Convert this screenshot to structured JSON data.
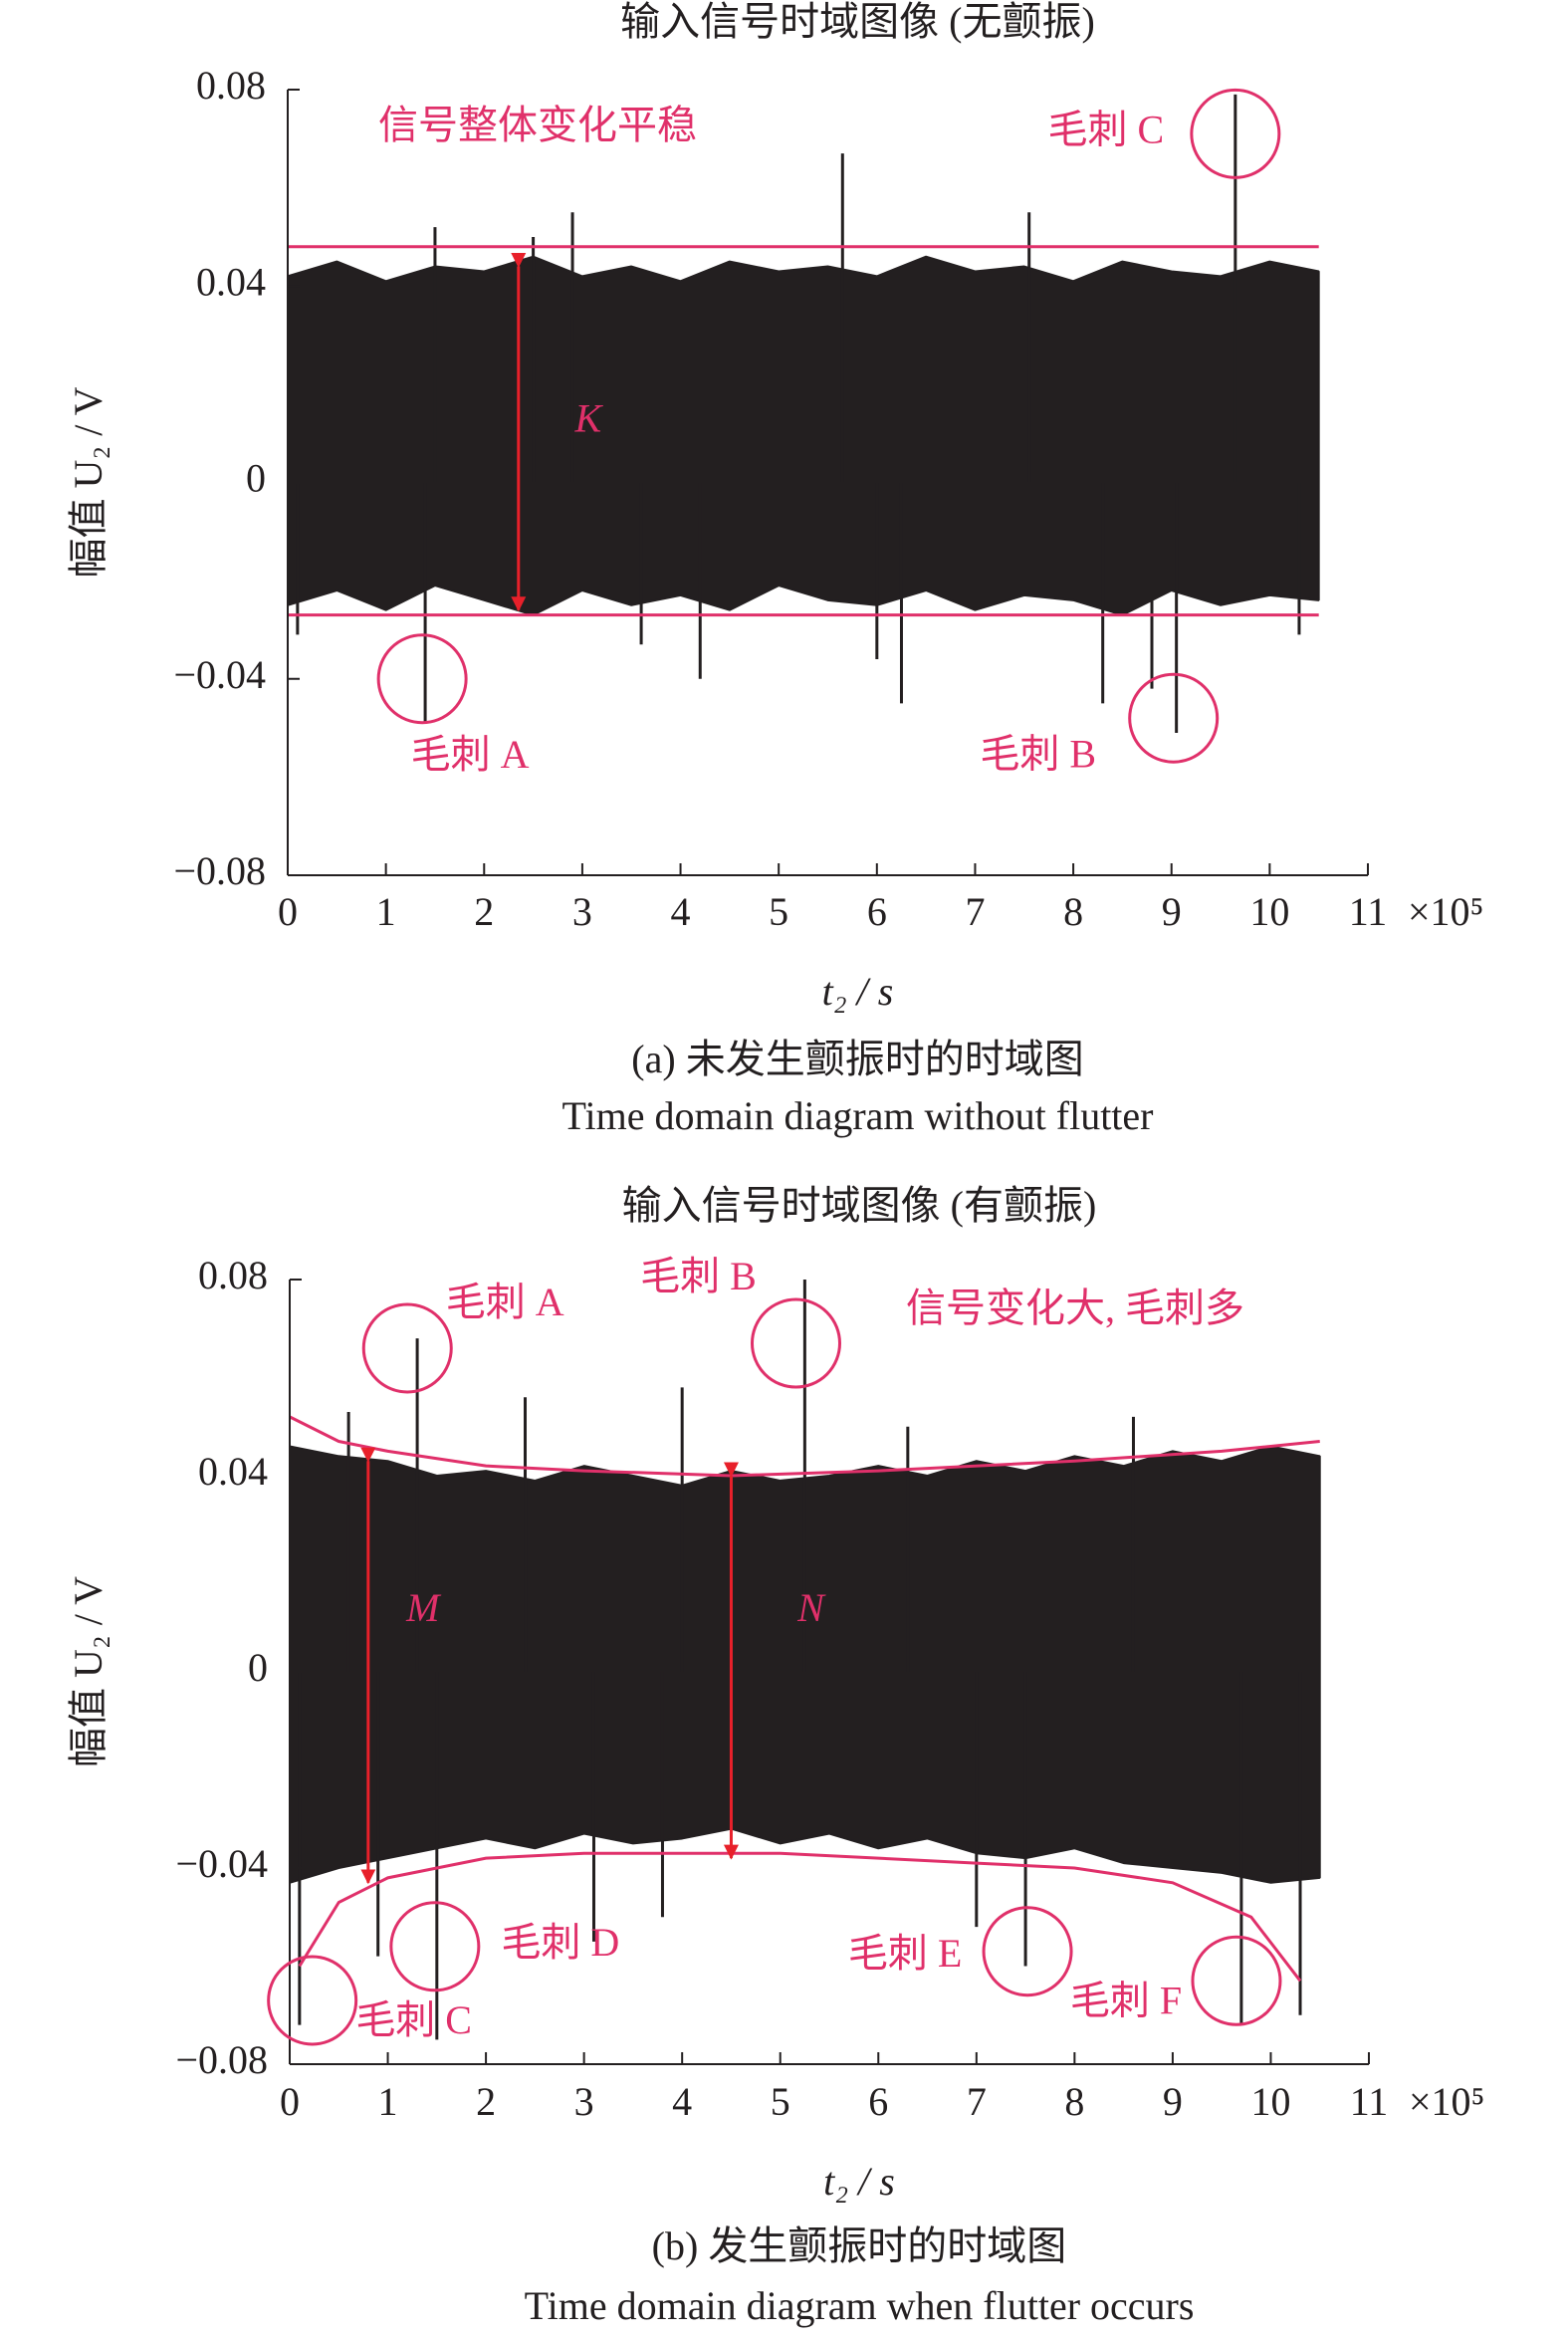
{
  "chart_data": [
    {
      "type": "band",
      "title": "输入信号时域图像 (无颤振)",
      "xlabel": "t₂ / s",
      "ylabel": "幅值 U₂ / V",
      "x_scale_label": "×10⁵",
      "caption": "(a) 未发生颤振时的时域图",
      "caption_en": "Time domain diagram without flutter",
      "xlim": [
        0,
        11
      ],
      "xticks": [
        0,
        1,
        2,
        3,
        4,
        5,
        6,
        7,
        8,
        9,
        10,
        11
      ],
      "ylim": [
        -0.08,
        0.08
      ],
      "yticks": [
        {
          "value": -0.08,
          "label": "−0.08"
        },
        {
          "value": -0.04,
          "label": "−0.04"
        },
        0,
        0.04,
        0.08
      ],
      "signal": {
        "color": "#231f20",
        "x": [
          0,
          0.5,
          1,
          1.5,
          2,
          2.5,
          3,
          3.5,
          4,
          4.5,
          5,
          5.5,
          6,
          6.5,
          7,
          7.5,
          8,
          8.5,
          9,
          9.5,
          10,
          10.5
        ],
        "upper": [
          0.042,
          0.045,
          0.041,
          0.044,
          0.043,
          0.046,
          0.042,
          0.044,
          0.041,
          0.045,
          0.043,
          0.044,
          0.042,
          0.046,
          0.043,
          0.044,
          0.041,
          0.045,
          0.043,
          0.042,
          0.045,
          0.043
        ],
        "lower": [
          -0.025,
          -0.022,
          -0.026,
          -0.021,
          -0.024,
          -0.027,
          -0.022,
          -0.025,
          -0.023,
          -0.026,
          -0.021,
          -0.024,
          -0.025,
          -0.022,
          -0.026,
          -0.023,
          -0.024,
          -0.027,
          -0.022,
          -0.025,
          -0.023,
          -0.024
        ]
      },
      "spikes": {
        "x": [
          0.1,
          1.4,
          1.5,
          2.5,
          2.9,
          4.2,
          5.65,
          6.25,
          7.55,
          8.3,
          8.8,
          9.05,
          9.65,
          10.3,
          3.6,
          6.0
        ],
        "values": [
          -0.031,
          -0.049,
          0.052,
          0.05,
          0.055,
          -0.04,
          0.067,
          -0.045,
          0.055,
          -0.045,
          -0.042,
          -0.051,
          0.079,
          -0.031,
          -0.033,
          -0.036
        ]
      },
      "envelope": {
        "color": "#e0306a",
        "upper": {
          "x": [
            0,
            10.5
          ],
          "values": [
            0.048,
            0.048
          ]
        },
        "lower": {
          "x": [
            0,
            10.5
          ],
          "values": [
            -0.027,
            -0.027
          ]
        }
      },
      "arrows": [
        {
          "label": "K",
          "x": 2.35,
          "from": 0.044,
          "to": -0.026
        }
      ],
      "note": "信号整体变化平稳",
      "annotations": [
        {
          "text": "毛刺 A",
          "x": 1.37,
          "y": -0.04
        },
        {
          "text": "毛刺 B",
          "x": 9.02,
          "y": -0.048
        },
        {
          "text": "毛刺 C",
          "x": 9.65,
          "y": 0.071
        }
      ]
    },
    {
      "type": "band",
      "title": "输入信号时域图像 (有颤振)",
      "xlabel": "t₂ / s",
      "ylabel": "幅值 U₂ / V",
      "x_scale_label": "×10⁵",
      "caption": "(b) 发生颤振时的时域图",
      "caption_en": "Time domain diagram when flutter occurs",
      "xlim": [
        0,
        11
      ],
      "xticks": [
        0,
        1,
        2,
        3,
        4,
        5,
        6,
        7,
        8,
        9,
        10,
        11
      ],
      "ylim": [
        -0.08,
        0.08
      ],
      "yticks": [
        {
          "value": -0.08,
          "label": "−0.08"
        },
        {
          "value": -0.04,
          "label": "−0.04"
        },
        0,
        0.04,
        0.08
      ],
      "signal": {
        "color": "#231f20",
        "x": [
          0,
          0.5,
          1,
          1.5,
          2,
          2.5,
          3,
          3.5,
          4,
          4.5,
          5,
          5.5,
          6,
          6.5,
          7,
          7.5,
          8,
          8.5,
          9,
          9.5,
          10,
          10.5
        ],
        "upper": [
          0.046,
          0.044,
          0.043,
          0.04,
          0.041,
          0.039,
          0.042,
          0.04,
          0.038,
          0.041,
          0.039,
          0.04,
          0.042,
          0.04,
          0.043,
          0.041,
          0.044,
          0.042,
          0.045,
          0.043,
          0.046,
          0.044
        ],
        "lower": [
          -0.043,
          -0.04,
          -0.038,
          -0.036,
          -0.034,
          -0.036,
          -0.033,
          -0.035,
          -0.034,
          -0.032,
          -0.035,
          -0.033,
          -0.036,
          -0.034,
          -0.037,
          -0.038,
          -0.036,
          -0.039,
          -0.04,
          -0.041,
          -0.043,
          -0.042
        ]
      },
      "spikes": {
        "x": [
          0.1,
          0.6,
          1.3,
          1.5,
          2.4,
          3.1,
          4.0,
          5.25,
          6.3,
          7.5,
          8.6,
          9.7,
          10.3,
          0.9,
          3.8,
          7.0
        ],
        "values": [
          -0.072,
          0.053,
          0.068,
          -0.075,
          0.056,
          -0.055,
          0.058,
          0.08,
          0.05,
          -0.06,
          0.052,
          -0.072,
          -0.07,
          -0.058,
          -0.05,
          -0.052
        ]
      },
      "envelope": {
        "color": "#e0306a",
        "upper": {
          "x": [
            0,
            0.5,
            1,
            2,
            3,
            4.5,
            6,
            8,
            9.5,
            10.5
          ],
          "values": [
            0.052,
            0.047,
            0.045,
            0.042,
            0.041,
            0.04,
            0.041,
            0.043,
            0.045,
            0.047
          ]
        },
        "lower": {
          "x": [
            0.1,
            0.5,
            1,
            2,
            3,
            5,
            7,
            8,
            9,
            9.8,
            10.3
          ],
          "values": [
            -0.06,
            -0.047,
            -0.042,
            -0.038,
            -0.037,
            -0.037,
            -0.039,
            -0.04,
            -0.043,
            -0.05,
            -0.063
          ]
        }
      },
      "arrows": [
        {
          "label": "M",
          "x": 0.8,
          "from": 0.043,
          "to": -0.043
        },
        {
          "label": "N",
          "x": 4.5,
          "from": 0.04,
          "to": -0.038
        }
      ],
      "note": "信号变化大, 毛刺多",
      "annotations": [
        {
          "text": "毛刺 A",
          "x": 1.2,
          "y": 0.066
        },
        {
          "text": "毛刺 B",
          "x": 5.16,
          "y": 0.067
        },
        {
          "text": "毛刺 C",
          "x": 0.23,
          "y": -0.067
        },
        {
          "text": "毛刺 D",
          "x": 1.48,
          "y": -0.056
        },
        {
          "text": "毛刺 E",
          "x": 7.52,
          "y": -0.057
        },
        {
          "text": "毛刺 F",
          "x": 9.65,
          "y": -0.063
        }
      ]
    }
  ]
}
